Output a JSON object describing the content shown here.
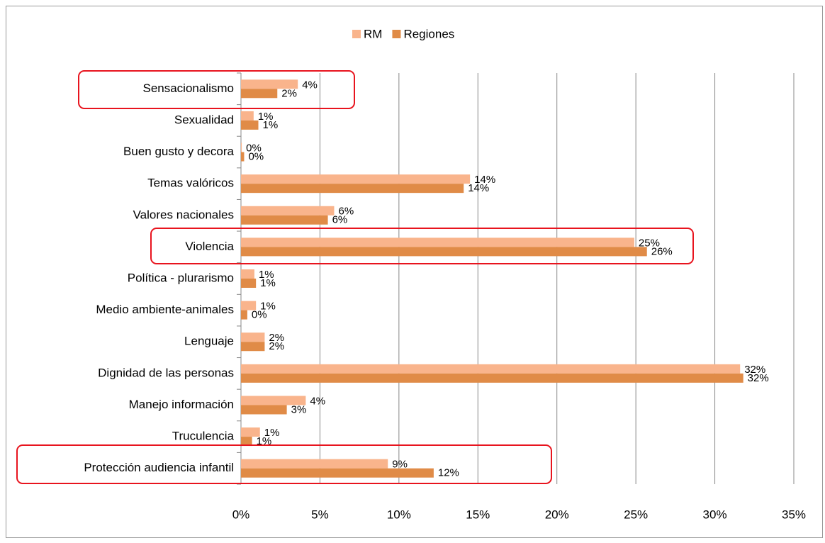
{
  "chart_data": {
    "type": "bar",
    "orientation": "horizontal",
    "categories": [
      "Sensacionalismo",
      "Sexualidad",
      "Buen gusto y decora",
      "Temas valóricos",
      "Valores nacionales",
      "Violencia",
      "Política - plurarismo",
      "Medio ambiente-animales",
      "Lenguaje",
      "Dignidad de las personas",
      "Manejo información",
      "Truculencia",
      "Protección audiencia infantil"
    ],
    "series": [
      {
        "name": "RM",
        "color": "#f9b48c",
        "values": [
          3.6,
          0.8,
          0.05,
          14.5,
          5.9,
          24.9,
          0.85,
          0.95,
          1.5,
          31.6,
          4.1,
          1.2,
          9.3
        ],
        "value_labels": [
          "4%",
          "1%",
          "0%",
          "14%",
          "6%",
          "25%",
          "1%",
          "1%",
          "2%",
          "32%",
          "4%",
          "1%",
          "9%"
        ]
      },
      {
        "name": "Regiones",
        "color": "#e08b47",
        "values": [
          2.3,
          1.1,
          0.2,
          14.1,
          5.5,
          25.7,
          0.95,
          0.4,
          1.5,
          31.8,
          2.9,
          0.7,
          12.2
        ],
        "value_labels": [
          "2%",
          "1%",
          "0%",
          "14%",
          "6%",
          "26%",
          "1%",
          "0%",
          "2%",
          "32%",
          "3%",
          "1%",
          "12%"
        ]
      }
    ],
    "xlim": [
      0,
      35
    ],
    "xticks": [
      {
        "value": 0,
        "label": "0%"
      },
      {
        "value": 5,
        "label": "5%"
      },
      {
        "value": 10,
        "label": "10%"
      },
      {
        "value": 15,
        "label": "15%"
      },
      {
        "value": 20,
        "label": "20%"
      },
      {
        "value": 25,
        "label": "25%"
      },
      {
        "value": 30,
        "label": "30%"
      },
      {
        "value": 35,
        "label": "35%"
      }
    ],
    "grid": true,
    "legend": "top"
  }
}
